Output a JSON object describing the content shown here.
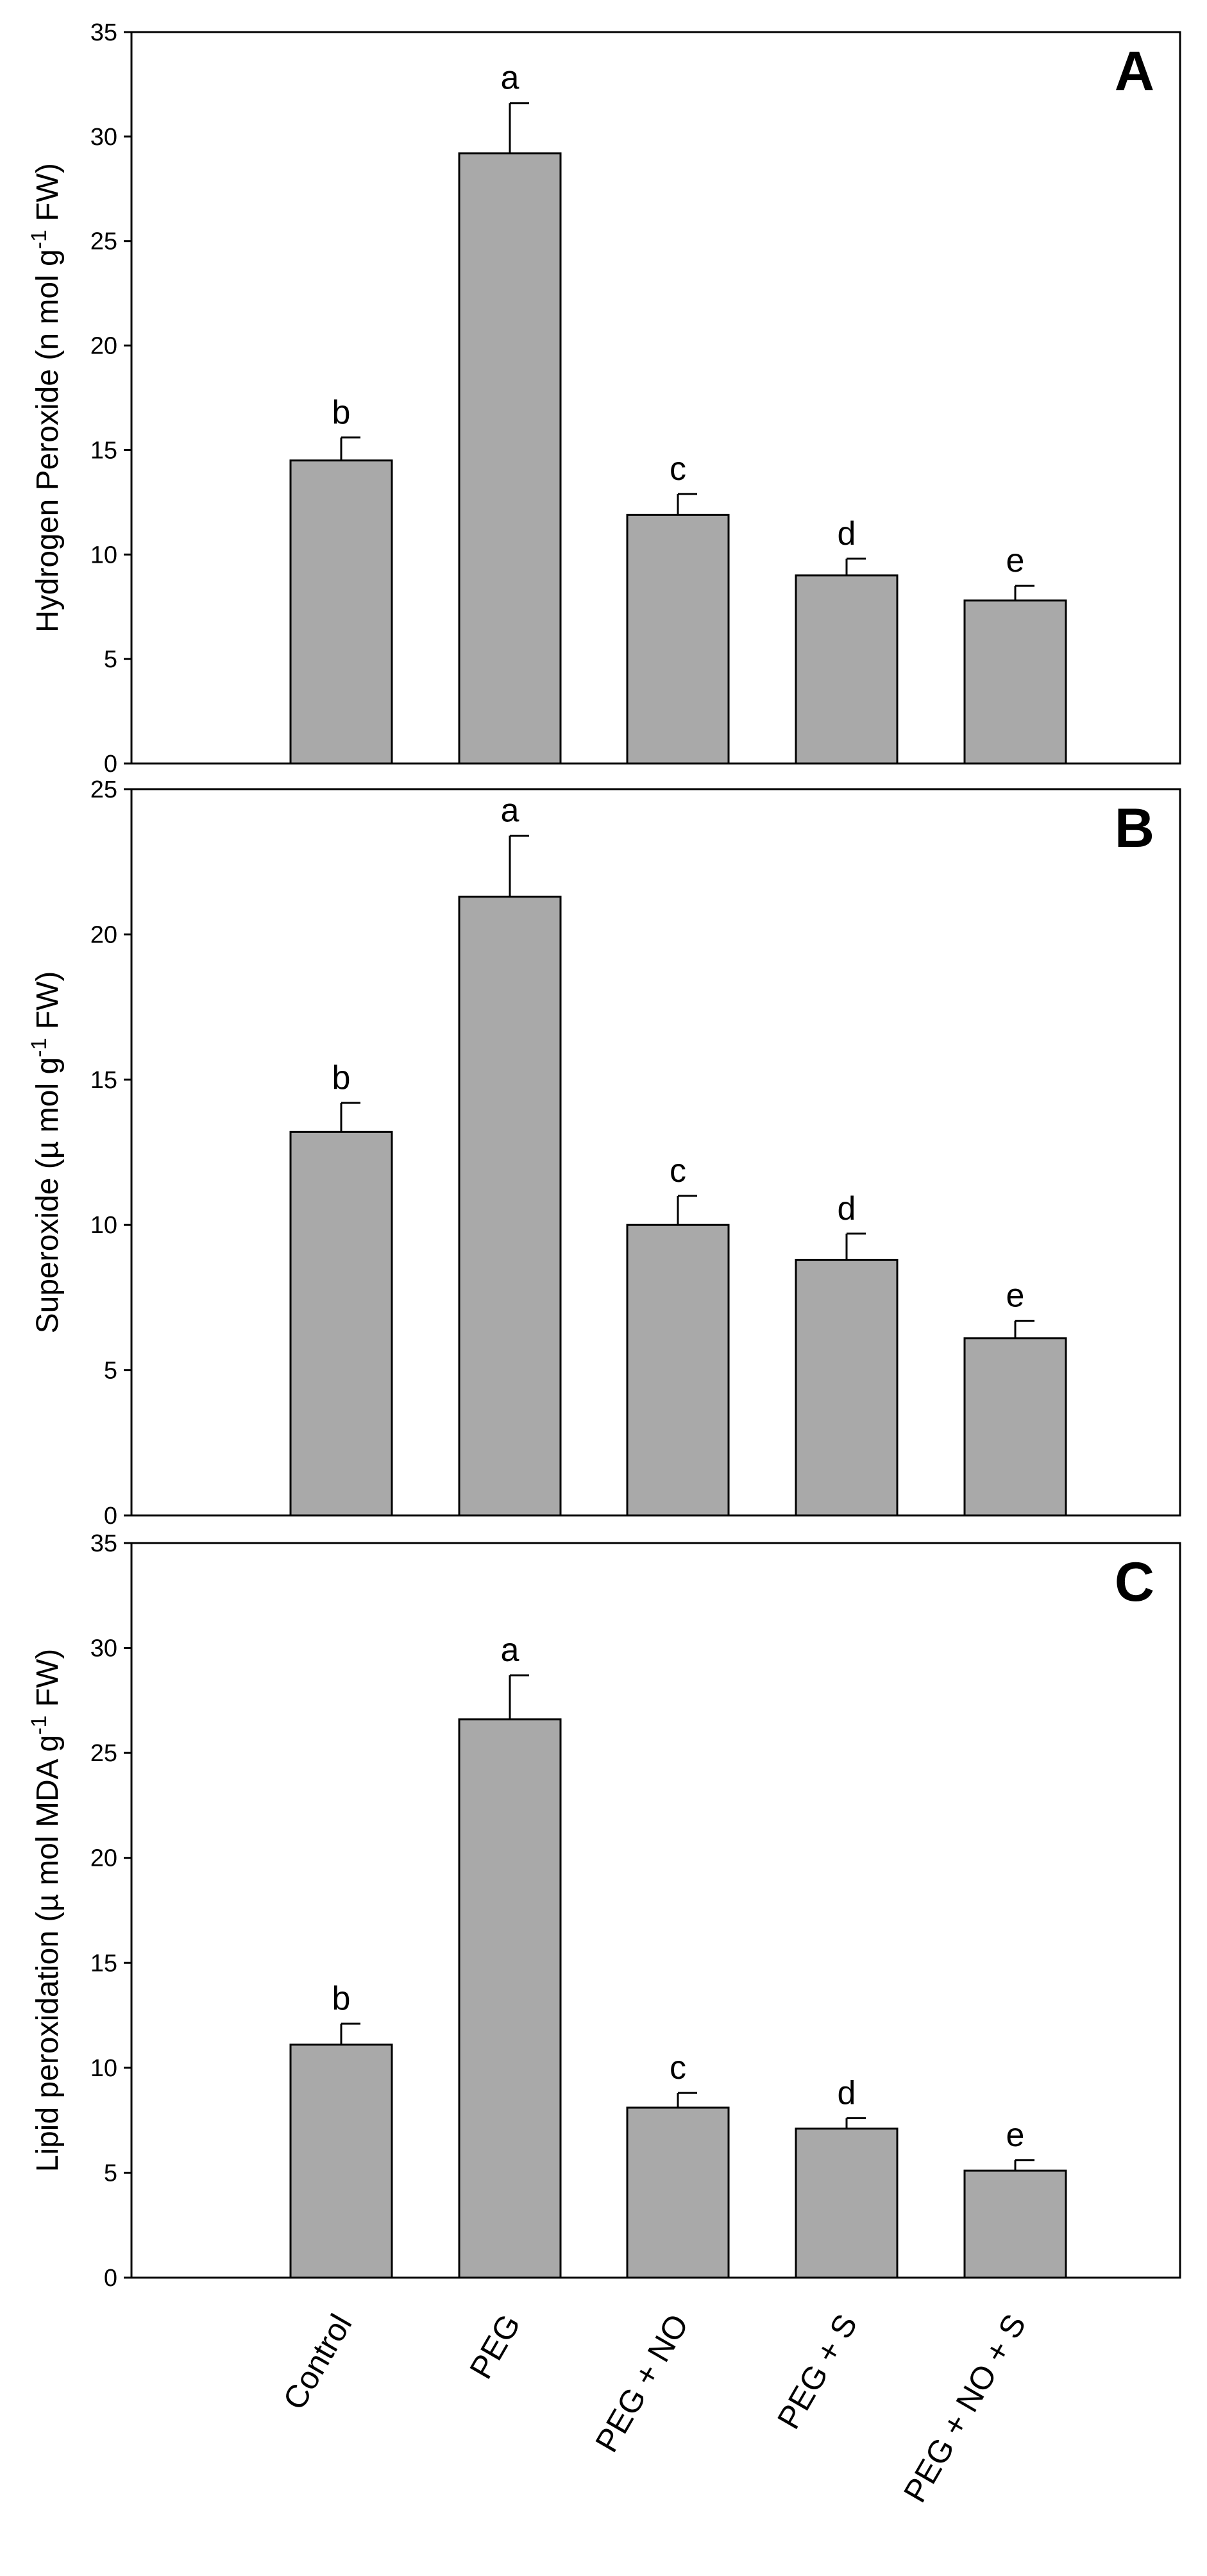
{
  "chart_data": [
    {
      "type": "bar",
      "panel_label": "A",
      "ylabel": "Hydrogen Peroxide (n mol g",
      "ylabel_sup": "-1",
      "ylabel_tail": " FW)",
      "ylim": [
        0,
        35
      ],
      "yticks": [
        "0",
        "5",
        "10",
        "15",
        "20",
        "25",
        "30",
        "35"
      ],
      "categories": [
        "Control",
        "PEG",
        "PEG + NO",
        "PEG + S",
        "PEG + NO + S"
      ],
      "values": [
        14.5,
        29.2,
        11.9,
        9.0,
        7.8
      ],
      "errors": [
        1.1,
        2.4,
        1.0,
        0.8,
        0.7
      ],
      "letters": [
        "b",
        "a",
        "c",
        "d",
        "e"
      ],
      "bar_color": "#a9a9a9"
    },
    {
      "type": "bar",
      "panel_label": "B",
      "ylabel": "Superoxide (µ mol g",
      "ylabel_sup": "-1",
      "ylabel_tail": " FW)",
      "ylim": [
        0,
        25
      ],
      "yticks": [
        "0",
        "5",
        "10",
        "15",
        "20",
        "25"
      ],
      "categories": [
        "Control",
        "PEG",
        "PEG + NO",
        "PEG + S",
        "PEG + NO + S"
      ],
      "values": [
        13.2,
        21.3,
        10.0,
        8.8,
        6.1
      ],
      "errors": [
        1.0,
        2.1,
        1.0,
        0.9,
        0.6
      ],
      "letters": [
        "b",
        "a",
        "c",
        "d",
        "e"
      ],
      "bar_color": "#a9a9a9"
    },
    {
      "type": "bar",
      "panel_label": "C",
      "ylabel": "Lipid peroxidation (µ mol MDA g",
      "ylabel_sup": "-1",
      "ylabel_tail": " FW)",
      "ylim": [
        0,
        35
      ],
      "yticks": [
        "0",
        "5",
        "10",
        "15",
        "20",
        "25",
        "30",
        "35"
      ],
      "categories": [
        "Control",
        "PEG",
        "PEG + NO",
        "PEG + S",
        "PEG + NO + S"
      ],
      "values": [
        11.1,
        26.6,
        8.1,
        7.1,
        5.1
      ],
      "errors": [
        1.0,
        2.1,
        0.7,
        0.5,
        0.5
      ],
      "letters": [
        "b",
        "a",
        "c",
        "d",
        "e"
      ],
      "bar_color": "#a9a9a9"
    }
  ]
}
